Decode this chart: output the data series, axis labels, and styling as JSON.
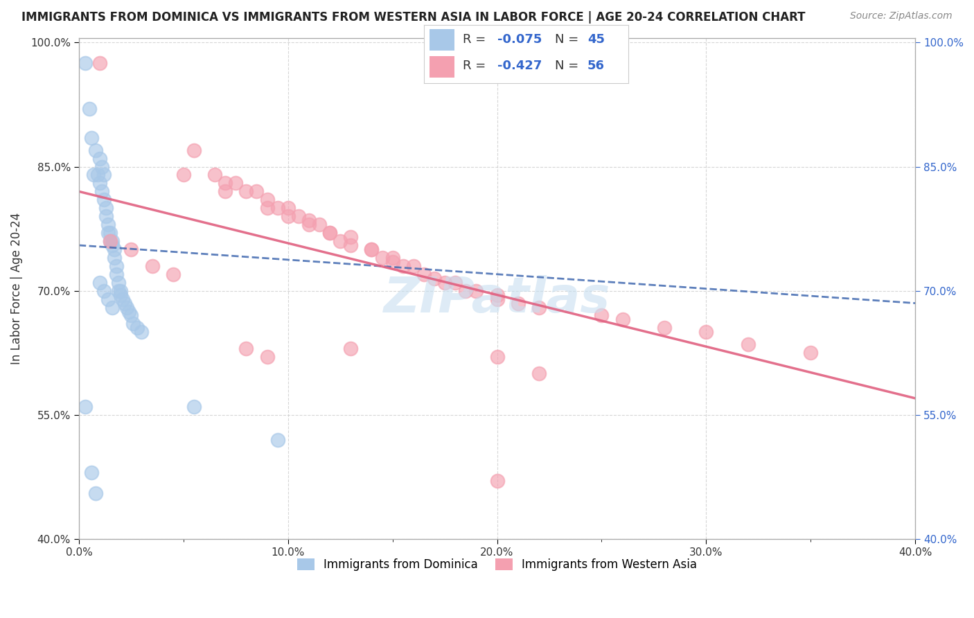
{
  "title": "IMMIGRANTS FROM DOMINICA VS IMMIGRANTS FROM WESTERN ASIA IN LABOR FORCE | AGE 20-24 CORRELATION CHART",
  "source": "Source: ZipAtlas.com",
  "ylabel": "In Labor Force | Age 20-24",
  "xlabel_blue": "Immigrants from Dominica",
  "xlabel_pink": "Immigrants from Western Asia",
  "xlim": [
    0.0,
    0.4
  ],
  "ylim": [
    0.4,
    1.005
  ],
  "yticks": [
    0.4,
    0.55,
    0.7,
    0.85,
    1.0
  ],
  "ytick_labels": [
    "40.0%",
    "55.0%",
    "70.0%",
    "85.0%",
    "100.0%"
  ],
  "xticks": [
    0.0,
    0.1,
    0.2,
    0.3,
    0.4
  ],
  "xtick_labels": [
    "0.0%",
    "10.0%",
    "20.0%",
    "30.0%",
    "40.0%"
  ],
  "blue_R": -0.075,
  "blue_N": 45,
  "pink_R": -0.427,
  "pink_N": 56,
  "blue_color": "#a8c8e8",
  "pink_color": "#f4a0b0",
  "blue_line_color": "#4169b0",
  "pink_line_color": "#e06080",
  "legend_R_color": "#3366cc",
  "legend_N_color": "#3366cc",
  "watermark": "ZIPatlas",
  "blue_scatter_x": [
    0.003,
    0.005,
    0.006,
    0.007,
    0.008,
    0.009,
    0.01,
    0.01,
    0.011,
    0.011,
    0.012,
    0.012,
    0.013,
    0.013,
    0.014,
    0.014,
    0.015,
    0.015,
    0.016,
    0.016,
    0.017,
    0.017,
    0.018,
    0.018,
    0.019,
    0.019,
    0.02,
    0.02,
    0.021,
    0.022,
    0.023,
    0.024,
    0.025,
    0.026,
    0.028,
    0.03,
    0.01,
    0.012,
    0.014,
    0.016,
    0.003,
    0.055,
    0.095,
    0.006,
    0.008
  ],
  "blue_scatter_y": [
    0.975,
    0.92,
    0.885,
    0.84,
    0.87,
    0.84,
    0.86,
    0.83,
    0.85,
    0.82,
    0.84,
    0.81,
    0.8,
    0.79,
    0.78,
    0.77,
    0.77,
    0.76,
    0.76,
    0.755,
    0.75,
    0.74,
    0.73,
    0.72,
    0.71,
    0.7,
    0.7,
    0.695,
    0.69,
    0.685,
    0.68,
    0.675,
    0.67,
    0.66,
    0.655,
    0.65,
    0.71,
    0.7,
    0.69,
    0.68,
    0.56,
    0.56,
    0.52,
    0.48,
    0.455
  ],
  "pink_scatter_x": [
    0.01,
    0.055,
    0.05,
    0.065,
    0.07,
    0.07,
    0.075,
    0.08,
    0.085,
    0.09,
    0.09,
    0.095,
    0.1,
    0.1,
    0.105,
    0.11,
    0.11,
    0.115,
    0.12,
    0.12,
    0.125,
    0.13,
    0.13,
    0.14,
    0.14,
    0.145,
    0.15,
    0.15,
    0.155,
    0.16,
    0.165,
    0.17,
    0.175,
    0.18,
    0.185,
    0.19,
    0.2,
    0.2,
    0.21,
    0.22,
    0.25,
    0.26,
    0.28,
    0.3,
    0.32,
    0.35,
    0.015,
    0.025,
    0.035,
    0.045,
    0.22,
    0.2,
    0.13,
    0.09,
    0.2,
    0.08
  ],
  "pink_scatter_y": [
    0.975,
    0.87,
    0.84,
    0.84,
    0.83,
    0.82,
    0.83,
    0.82,
    0.82,
    0.81,
    0.8,
    0.8,
    0.8,
    0.79,
    0.79,
    0.78,
    0.785,
    0.78,
    0.77,
    0.77,
    0.76,
    0.765,
    0.755,
    0.75,
    0.75,
    0.74,
    0.74,
    0.735,
    0.73,
    0.73,
    0.72,
    0.715,
    0.71,
    0.71,
    0.7,
    0.7,
    0.695,
    0.69,
    0.685,
    0.68,
    0.67,
    0.665,
    0.655,
    0.65,
    0.635,
    0.625,
    0.76,
    0.75,
    0.73,
    0.72,
    0.6,
    0.62,
    0.63,
    0.62,
    0.47,
    0.63
  ],
  "blue_line_x0": 0.0,
  "blue_line_x1": 0.4,
  "blue_line_y0": 0.755,
  "blue_line_y1": 0.685,
  "pink_line_x0": 0.0,
  "pink_line_x1": 0.4,
  "pink_line_y0": 0.82,
  "pink_line_y1": 0.57
}
